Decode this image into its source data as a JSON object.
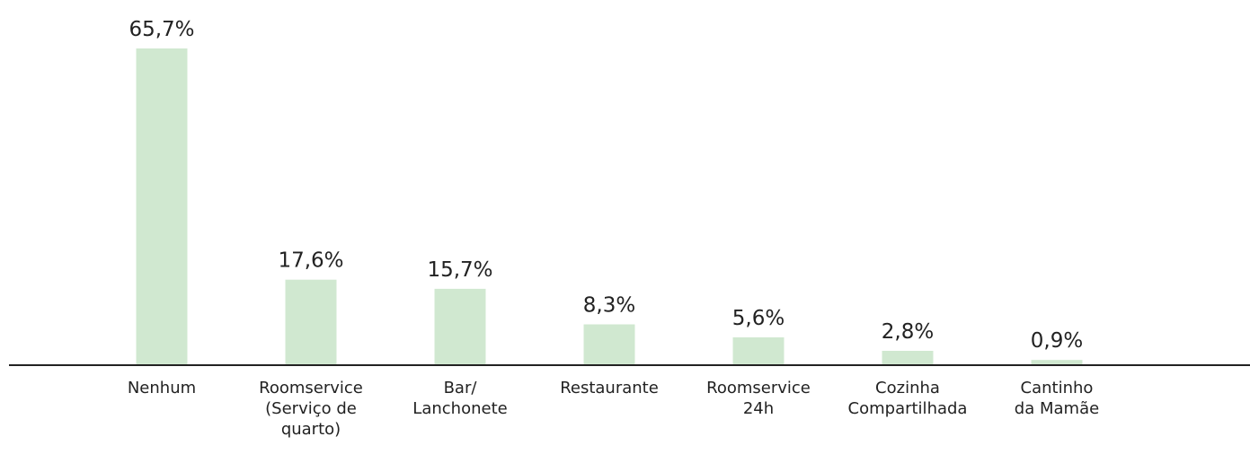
{
  "chart_data": {
    "type": "bar",
    "categories": [
      "Nenhum",
      "Roomservice\n(Serviço de\nquarto)",
      "Bar/\nLanchonete",
      "Restaurante",
      "Roomservice\n24h",
      "Cozinha\nCompartilhada",
      "Cantinho\nda Mamãe"
    ],
    "values": [
      65.7,
      17.6,
      15.7,
      8.3,
      5.6,
      2.8,
      0.9
    ],
    "value_labels": [
      "65,7%",
      "17,6%",
      "15,7%",
      "8,3%",
      "5,6%",
      "2,8%",
      "0,9%"
    ],
    "color": "#d0e8d0"
  }
}
